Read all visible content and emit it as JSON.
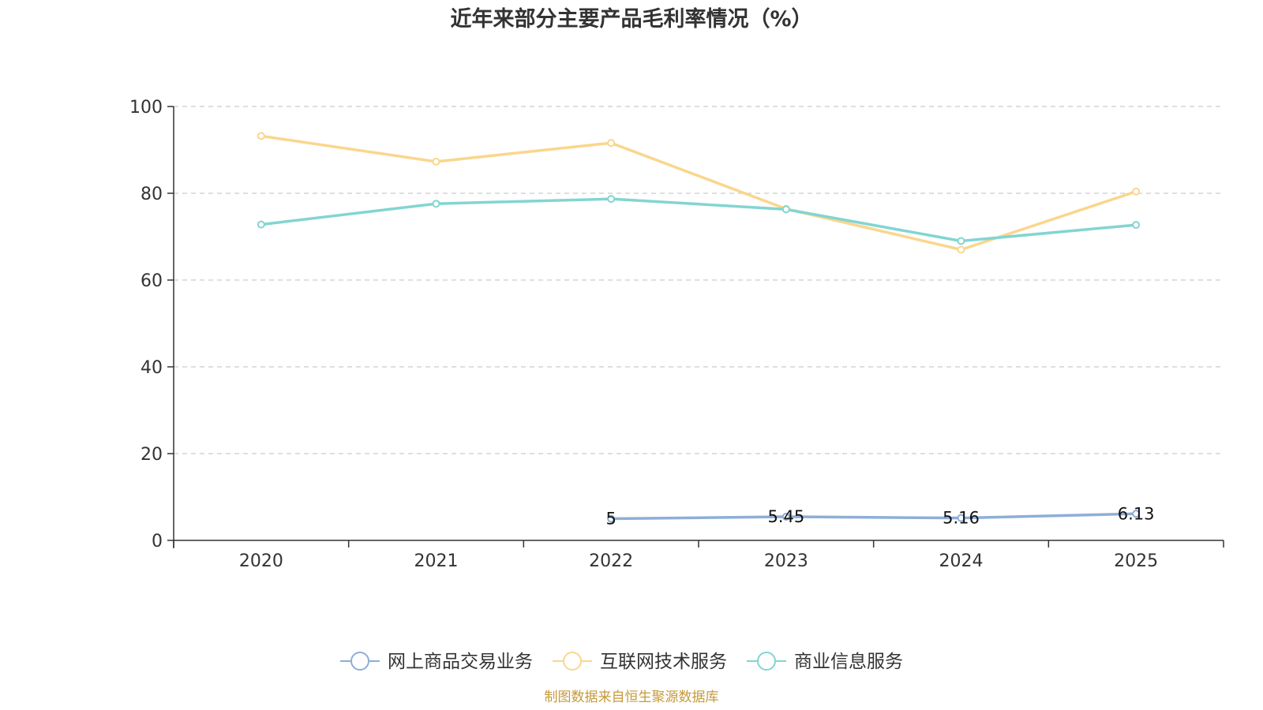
{
  "chart_data": {
    "type": "line",
    "title": "近年来部分主要产品毛利率情况（%）",
    "xlabel": "",
    "ylabel": "",
    "categories": [
      "2020",
      "2021",
      "2022",
      "2023",
      "2024",
      "2025"
    ],
    "ylim": [
      0,
      100
    ],
    "yticks": [
      0,
      20,
      40,
      60,
      80,
      100
    ],
    "grid": true,
    "legend_position": "bottom-center",
    "series": [
      {
        "name": "网上商品交易业务",
        "color": "#8eaed7",
        "values": [
          null,
          null,
          5,
          5.45,
          5.16,
          6.13
        ],
        "labels": [
          "",
          "",
          "5",
          "5.45",
          "5.16",
          "6.13"
        ],
        "show_labels": true
      },
      {
        "name": "互联网技术服务",
        "color": "#fad68d",
        "values": [
          93.2,
          87.3,
          91.6,
          76.4,
          67.0,
          80.4
        ],
        "labels": [],
        "show_labels": false
      },
      {
        "name": "商业信息服务",
        "color": "#82d5d2",
        "values": [
          72.8,
          77.6,
          78.7,
          76.3,
          69.0,
          72.7
        ],
        "labels": [],
        "show_labels": false
      }
    ],
    "source": "制图数据来自恒生聚源数据库",
    "source_color": "#c59a3a"
  }
}
